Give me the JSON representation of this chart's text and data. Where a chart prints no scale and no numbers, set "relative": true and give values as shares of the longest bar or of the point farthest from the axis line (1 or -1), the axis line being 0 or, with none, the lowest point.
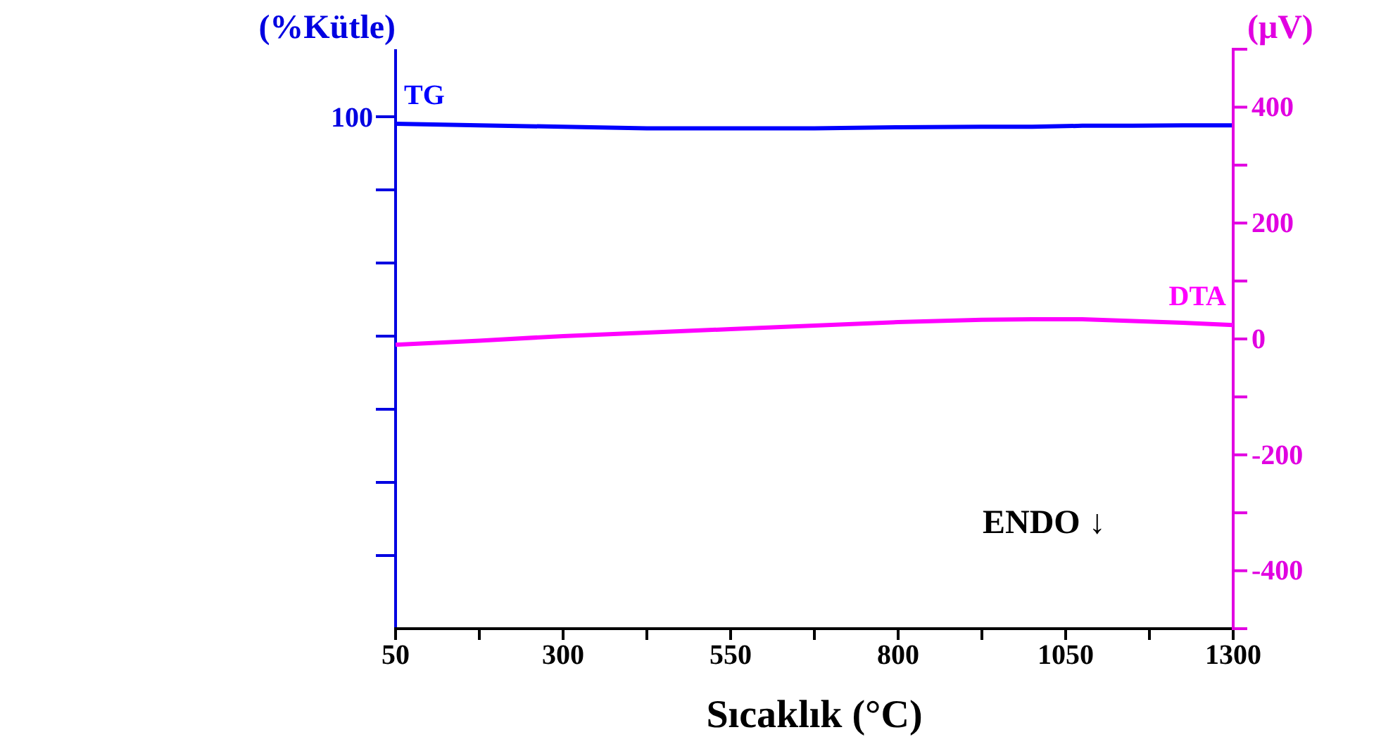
{
  "chart_data": [
    {
      "type": "line",
      "ylabel": "(%Kütle)",
      "relative": true,
      "x": [
        50,
        175,
        300,
        425,
        550,
        675,
        800,
        925,
        1000,
        1075,
        1150,
        1225,
        1300
      ],
      "xlim": [
        50,
        1300
      ],
      "series": [
        {
          "name": "TG",
          "color": "#0000ff",
          "values": [
            1,
            0.997,
            0.994,
            0.991,
            0.991,
            0.991,
            0.993,
            0.994,
            0.994,
            0.996,
            0.996,
            0.997,
            0.997
          ]
        }
      ],
      "annotations": [
        "100"
      ],
      "legend": false,
      "marker": "none",
      "line_style": "solid"
    },
    {
      "type": "line",
      "xlabel": "Sıcaklık (°C)",
      "y2label": "(μV)",
      "x": [
        50,
        175,
        300,
        425,
        550,
        675,
        800,
        925,
        1000,
        1075,
        1150,
        1225,
        1300
      ],
      "series": [
        {
          "name": "DTA",
          "color": "#ff00ff",
          "axis": "y2",
          "values": [
            -10,
            -3,
            5,
            11,
            17,
            23,
            29,
            33,
            34,
            34,
            31,
            28,
            24
          ]
        }
      ],
      "xlim": [
        50,
        1300
      ],
      "xticks": [
        50,
        {
          "value": 175,
          "label": null
        },
        300,
        {
          "value": 425,
          "label": null
        },
        550,
        {
          "value": 675,
          "label": null
        },
        800,
        {
          "value": 925,
          "label": null
        },
        1050,
        {
          "value": 1175,
          "label": null
        },
        1300
      ],
      "y2lim": [
        -500,
        500
      ],
      "y2ticks": [
        -400,
        {
          "value": -300,
          "label": null
        },
        -200,
        {
          "value": -100,
          "label": null
        },
        0,
        {
          "value": 100,
          "label": null
        },
        200,
        {
          "value": 300,
          "label": null
        },
        400
      ],
      "annotations": [
        "ENDO ↓"
      ],
      "legend": false,
      "marker": "none",
      "line_style": "solid"
    }
  ]
}
